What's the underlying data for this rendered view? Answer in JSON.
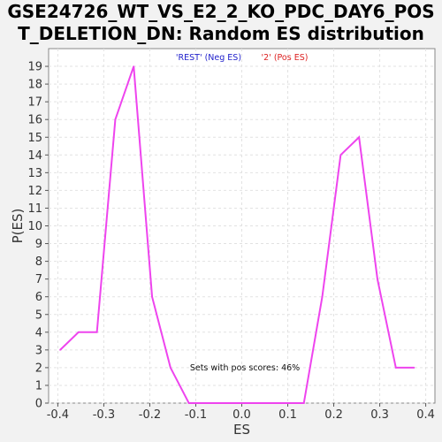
{
  "chart_data": {
    "type": "line",
    "title_lines": [
      "GSE24726_WT_VS_E2_2_KO_PDC_DAY6_POS",
      "T_DELETION_DN: Random ES distribution"
    ],
    "xlabel": "ES",
    "ylabel": "P(ES)",
    "xlim": [
      -0.42,
      0.42
    ],
    "ylim": [
      0,
      20
    ],
    "x_ticks": [
      -0.4,
      -0.3,
      -0.2,
      -0.1,
      0.0,
      0.1,
      0.2,
      0.3,
      0.4
    ],
    "x_tick_labels": [
      "-0.4",
      "-0.3",
      "-0.2",
      "-0.1",
      "0.0",
      "0.1",
      "0.2",
      "0.3",
      "0.4"
    ],
    "y_ticks": [
      0,
      1,
      2,
      3,
      4,
      5,
      6,
      7,
      8,
      9,
      10,
      11,
      12,
      13,
      14,
      15,
      16,
      17,
      18,
      19
    ],
    "grid": true,
    "legend": {
      "placement": "top-center",
      "entries": [
        {
          "label": "'REST' (Neg ES)",
          "color": "#2222cc"
        },
        {
          "label": "'2' (Pos ES)",
          "color": "#dd2222"
        }
      ]
    },
    "annotation": "Sets with pos scores: 46%",
    "series": [
      {
        "color": "#ee44ee",
        "points": [
          [
            -0.395,
            3
          ],
          [
            -0.355,
            4
          ],
          [
            -0.315,
            4
          ],
          [
            -0.275,
            16
          ],
          [
            -0.235,
            19
          ],
          [
            -0.195,
            6
          ],
          [
            -0.155,
            2
          ],
          [
            -0.115,
            0
          ],
          [
            -0.075,
            0
          ],
          [
            -0.035,
            0
          ],
          [
            0.005,
            0
          ],
          [
            0.045,
            0
          ],
          [
            0.085,
            0
          ],
          [
            0.125,
            0
          ],
          [
            0.135,
            0
          ],
          [
            0.175,
            6
          ],
          [
            0.215,
            14
          ],
          [
            0.255,
            15
          ],
          [
            0.295,
            7
          ],
          [
            0.335,
            2
          ],
          [
            0.375,
            2
          ]
        ]
      }
    ]
  }
}
